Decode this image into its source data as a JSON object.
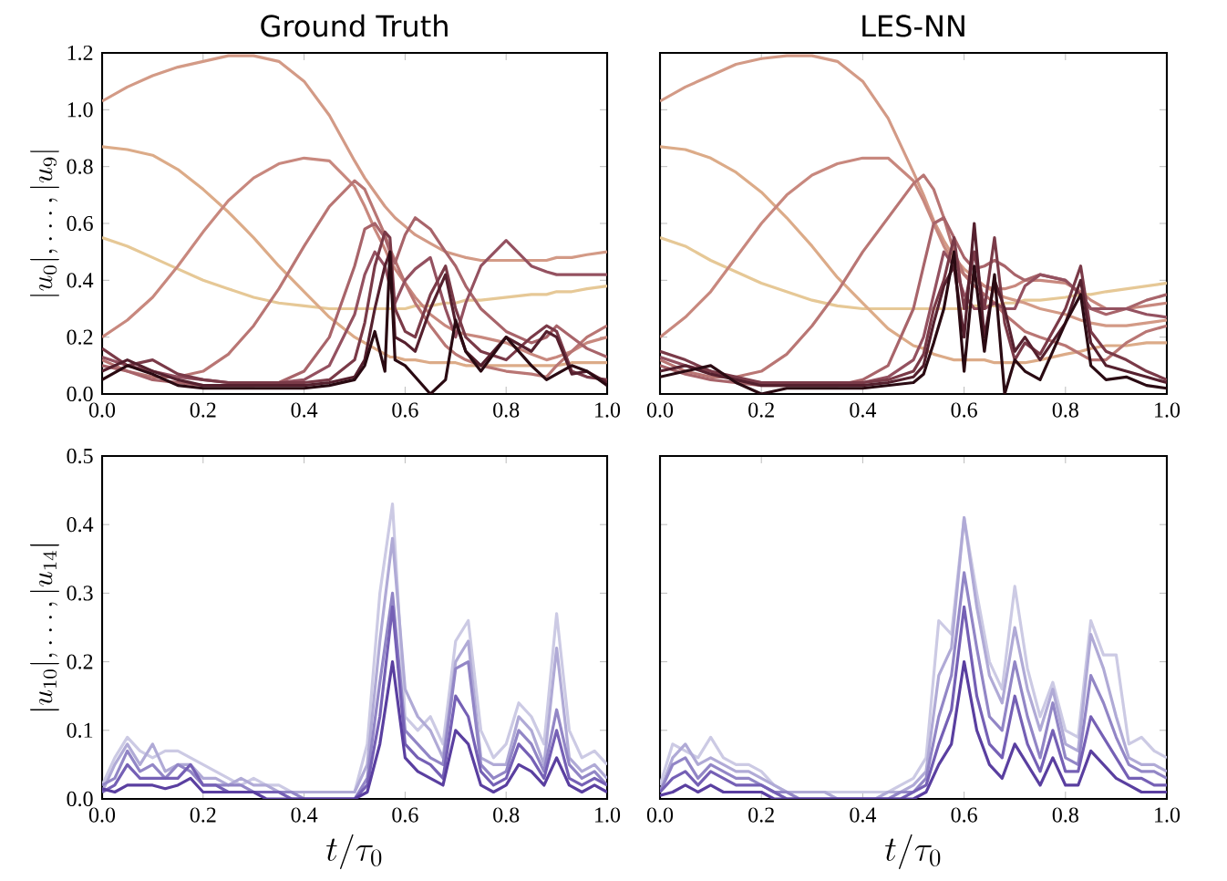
{
  "chart_data": [
    {
      "type": "line",
      "title": "Ground Truth",
      "ylabel": "|u_0|, \\ldots, |u_9|",
      "x": [
        0,
        0.05,
        0.1,
        0.15,
        0.2,
        0.25,
        0.3,
        0.35,
        0.4,
        0.45,
        0.5,
        0.52,
        0.54,
        0.56,
        0.57,
        0.58,
        0.6,
        0.62,
        0.65,
        0.68,
        0.7,
        0.72,
        0.75,
        0.8,
        0.85,
        0.88,
        0.9,
        0.93,
        0.96,
        1.0
      ],
      "xlim": [
        0,
        1
      ],
      "ylim": [
        0,
        1.2
      ],
      "xticks": [
        {
          "value": 0,
          "label": "0.0"
        },
        {
          "value": 0.2,
          "label": "0.2"
        },
        {
          "value": 0.4,
          "label": "0.4"
        },
        {
          "value": 0.6,
          "label": "0.6"
        },
        {
          "value": 0.8,
          "label": "0.8"
        },
        {
          "value": 1,
          "label": "1.0"
        }
      ],
      "yticks": [
        {
          "value": 0,
          "label": "0.0"
        },
        {
          "value": 0.2,
          "label": "0.2"
        },
        {
          "value": 0.4,
          "label": "0.4"
        },
        {
          "value": 0.6,
          "label": "0.6"
        },
        {
          "value": 0.8,
          "label": "0.8"
        },
        {
          "value": 1,
          "label": "1.0"
        },
        {
          "value": 1.2,
          "label": "1.2"
        }
      ],
      "series": [
        {
          "color": "#e6c896",
          "values": [
            0.55,
            0.52,
            0.48,
            0.44,
            0.4,
            0.37,
            0.34,
            0.32,
            0.31,
            0.3,
            0.3,
            0.3,
            0.3,
            0.3,
            0.3,
            0.3,
            0.3,
            0.31,
            0.31,
            0.32,
            0.32,
            0.33,
            0.33,
            0.34,
            0.35,
            0.35,
            0.36,
            0.36,
            0.37,
            0.38
          ]
        },
        {
          "color": "#dcab88",
          "values": [
            0.87,
            0.86,
            0.84,
            0.79,
            0.72,
            0.64,
            0.55,
            0.45,
            0.36,
            0.27,
            0.2,
            0.18,
            0.16,
            0.14,
            0.13,
            0.13,
            0.12,
            0.12,
            0.11,
            0.11,
            0.11,
            0.1,
            0.1,
            0.1,
            0.1,
            0.1,
            0.1,
            0.11,
            0.11,
            0.11
          ]
        },
        {
          "color": "#d39a86",
          "values": [
            1.03,
            1.08,
            1.12,
            1.15,
            1.17,
            1.19,
            1.19,
            1.17,
            1.1,
            0.98,
            0.82,
            0.76,
            0.71,
            0.66,
            0.64,
            0.62,
            0.59,
            0.56,
            0.53,
            0.5,
            0.49,
            0.48,
            0.47,
            0.47,
            0.47,
            0.47,
            0.48,
            0.48,
            0.49,
            0.5
          ]
        },
        {
          "color": "#c8887e",
          "values": [
            0.2,
            0.26,
            0.34,
            0.45,
            0.57,
            0.68,
            0.76,
            0.81,
            0.83,
            0.82,
            0.73,
            0.66,
            0.58,
            0.51,
            0.47,
            0.44,
            0.39,
            0.34,
            0.28,
            0.24,
            0.22,
            0.21,
            0.2,
            0.18,
            0.14,
            0.12,
            0.13,
            0.15,
            0.18,
            0.2
          ]
        },
        {
          "color": "#b97674",
          "values": [
            0.12,
            0.08,
            0.06,
            0.06,
            0.08,
            0.14,
            0.24,
            0.37,
            0.52,
            0.66,
            0.75,
            0.72,
            0.64,
            0.56,
            0.51,
            0.47,
            0.39,
            0.32,
            0.24,
            0.17,
            0.14,
            0.12,
            0.1,
            0.08,
            0.07,
            0.06,
            0.1,
            0.15,
            0.2,
            0.24
          ]
        },
        {
          "color": "#a8646a",
          "values": [
            0.1,
            0.08,
            0.05,
            0.04,
            0.03,
            0.03,
            0.03,
            0.04,
            0.08,
            0.2,
            0.45,
            0.58,
            0.6,
            0.55,
            0.5,
            0.46,
            0.56,
            0.62,
            0.58,
            0.5,
            0.45,
            0.38,
            0.3,
            0.22,
            0.18,
            0.2,
            0.24,
            0.2,
            0.16,
            0.13
          ]
        },
        {
          "color": "#945160",
          "values": [
            0.13,
            0.1,
            0.08,
            0.06,
            0.05,
            0.04,
            0.04,
            0.04,
            0.05,
            0.1,
            0.28,
            0.42,
            0.5,
            0.45,
            0.38,
            0.32,
            0.4,
            0.44,
            0.48,
            0.3,
            0.2,
            0.32,
            0.45,
            0.54,
            0.45,
            0.43,
            0.42,
            0.42,
            0.42,
            0.42
          ]
        },
        {
          "color": "#7a3a48",
          "values": [
            0.16,
            0.1,
            0.12,
            0.07,
            0.05,
            0.04,
            0.04,
            0.04,
            0.04,
            0.05,
            0.12,
            0.25,
            0.45,
            0.57,
            0.55,
            0.3,
            0.22,
            0.2,
            0.35,
            0.45,
            0.3,
            0.2,
            0.15,
            0.12,
            0.2,
            0.24,
            0.22,
            0.08,
            0.06,
            0.05
          ]
        },
        {
          "color": "#55202e",
          "values": [
            0.08,
            0.12,
            0.08,
            0.05,
            0.03,
            0.03,
            0.03,
            0.03,
            0.03,
            0.04,
            0.06,
            0.12,
            0.3,
            0.45,
            0.5,
            0.2,
            0.18,
            0.15,
            0.3,
            0.42,
            0.25,
            0.15,
            0.1,
            0.2,
            0.15,
            0.22,
            0.2,
            0.07,
            0.08,
            0.04
          ]
        },
        {
          "color": "#2a0a12",
          "values": [
            0.05,
            0.1,
            0.07,
            0.03,
            0.02,
            0.02,
            0.02,
            0.02,
            0.02,
            0.03,
            0.05,
            0.1,
            0.22,
            0.08,
            0.5,
            0.12,
            0.1,
            0.06,
            0.0,
            0.05,
            0.26,
            0.15,
            0.08,
            0.2,
            0.1,
            0.05,
            0.07,
            0.1,
            0.08,
            0.03
          ]
        }
      ]
    },
    {
      "type": "line",
      "title": "LES-NN",
      "tick_labels": "x",
      "x": [
        0,
        0.05,
        0.1,
        0.15,
        0.2,
        0.25,
        0.3,
        0.35,
        0.4,
        0.45,
        0.5,
        0.52,
        0.54,
        0.56,
        0.58,
        0.6,
        0.62,
        0.64,
        0.66,
        0.68,
        0.7,
        0.72,
        0.75,
        0.8,
        0.83,
        0.85,
        0.88,
        0.92,
        0.96,
        1.0
      ],
      "xlim": [
        0,
        1
      ],
      "ylim": [
        0,
        1.2
      ],
      "xticks": [
        {
          "value": 0,
          "label": "0.0"
        },
        {
          "value": 0.2,
          "label": "0.2"
        },
        {
          "value": 0.4,
          "label": "0.4"
        },
        {
          "value": 0.6,
          "label": "0.6"
        },
        {
          "value": 0.8,
          "label": "0.8"
        },
        {
          "value": 1,
          "label": "1.0"
        }
      ],
      "yticks": [
        {
          "value": 0,
          "label": null
        },
        {
          "value": 0.2,
          "label": null
        },
        {
          "value": 0.4,
          "label": null
        },
        {
          "value": 0.6,
          "label": null
        },
        {
          "value": 0.8,
          "label": null
        },
        {
          "value": 1,
          "label": null
        },
        {
          "value": 1.2,
          "label": null
        }
      ],
      "series": [
        {
          "color": "#e6c896",
          "values": [
            0.55,
            0.52,
            0.47,
            0.43,
            0.39,
            0.36,
            0.33,
            0.31,
            0.3,
            0.3,
            0.3,
            0.3,
            0.3,
            0.3,
            0.3,
            0.3,
            0.31,
            0.31,
            0.31,
            0.32,
            0.32,
            0.33,
            0.33,
            0.34,
            0.35,
            0.35,
            0.36,
            0.37,
            0.38,
            0.39
          ]
        },
        {
          "color": "#dcab88",
          "values": [
            0.87,
            0.86,
            0.83,
            0.78,
            0.71,
            0.62,
            0.52,
            0.41,
            0.32,
            0.23,
            0.17,
            0.16,
            0.14,
            0.13,
            0.12,
            0.12,
            0.12,
            0.12,
            0.11,
            0.11,
            0.11,
            0.11,
            0.12,
            0.14,
            0.15,
            0.16,
            0.17,
            0.17,
            0.18,
            0.18
          ]
        },
        {
          "color": "#d39a86",
          "values": [
            1.03,
            1.08,
            1.12,
            1.16,
            1.18,
            1.19,
            1.19,
            1.17,
            1.1,
            0.97,
            0.78,
            0.7,
            0.61,
            0.54,
            0.48,
            0.44,
            0.41,
            0.38,
            0.36,
            0.34,
            0.33,
            0.32,
            0.3,
            0.28,
            0.26,
            0.25,
            0.24,
            0.24,
            0.25,
            0.26
          ]
        },
        {
          "color": "#c8887e",
          "values": [
            0.2,
            0.27,
            0.36,
            0.48,
            0.6,
            0.7,
            0.77,
            0.81,
            0.83,
            0.83,
            0.75,
            0.68,
            0.6,
            0.52,
            0.46,
            0.42,
            0.4,
            0.38,
            0.37,
            0.37,
            0.38,
            0.4,
            0.4,
            0.39,
            0.36,
            0.33,
            0.3,
            0.3,
            0.31,
            0.32
          ]
        },
        {
          "color": "#b97674",
          "values": [
            0.12,
            0.08,
            0.06,
            0.06,
            0.08,
            0.14,
            0.24,
            0.36,
            0.5,
            0.62,
            0.74,
            0.77,
            0.72,
            0.62,
            0.5,
            0.42,
            0.38,
            0.35,
            0.32,
            0.28,
            0.25,
            0.22,
            0.2,
            0.17,
            0.14,
            0.12,
            0.12,
            0.18,
            0.22,
            0.24
          ]
        },
        {
          "color": "#a8646a",
          "values": [
            0.1,
            0.07,
            0.05,
            0.04,
            0.03,
            0.03,
            0.03,
            0.03,
            0.05,
            0.1,
            0.3,
            0.45,
            0.6,
            0.62,
            0.55,
            0.48,
            0.44,
            0.45,
            0.47,
            0.45,
            0.42,
            0.4,
            0.42,
            0.4,
            0.35,
            0.3,
            0.28,
            0.3,
            0.33,
            0.35
          ]
        },
        {
          "color": "#945160",
          "values": [
            0.13,
            0.1,
            0.08,
            0.05,
            0.04,
            0.04,
            0.04,
            0.04,
            0.04,
            0.06,
            0.12,
            0.2,
            0.35,
            0.5,
            0.45,
            0.35,
            0.3,
            0.3,
            0.32,
            0.3,
            0.3,
            0.38,
            0.42,
            0.4,
            0.35,
            0.3,
            0.3,
            0.3,
            0.28,
            0.27
          ]
        },
        {
          "color": "#7a3a48",
          "values": [
            0.15,
            0.12,
            0.08,
            0.06,
            0.04,
            0.04,
            0.04,
            0.04,
            0.04,
            0.05,
            0.08,
            0.14,
            0.3,
            0.4,
            0.55,
            0.3,
            0.5,
            0.3,
            0.55,
            0.25,
            0.12,
            0.18,
            0.14,
            0.3,
            0.45,
            0.22,
            0.15,
            0.12,
            0.08,
            0.05
          ]
        },
        {
          "color": "#55202e",
          "values": [
            0.08,
            0.1,
            0.07,
            0.05,
            0.03,
            0.03,
            0.03,
            0.03,
            0.03,
            0.04,
            0.06,
            0.1,
            0.25,
            0.38,
            0.45,
            0.2,
            0.6,
            0.2,
            0.4,
            0.3,
            0.15,
            0.2,
            0.12,
            0.25,
            0.4,
            0.18,
            0.1,
            0.08,
            0.06,
            0.04
          ]
        },
        {
          "color": "#2a0a12",
          "values": [
            0.06,
            0.08,
            0.1,
            0.04,
            0.0,
            0.02,
            0.02,
            0.02,
            0.02,
            0.03,
            0.04,
            0.07,
            0.18,
            0.3,
            0.5,
            0.08,
            0.45,
            0.15,
            0.42,
            0.0,
            0.12,
            0.08,
            0.05,
            0.25,
            0.35,
            0.1,
            0.05,
            0.06,
            0.03,
            0.02
          ]
        }
      ]
    },
    {
      "type": "line",
      "xlabel": "t/\\tau_0",
      "ylabel": "|u_{10}|, \\ldots, |u_{14}|",
      "x": [
        0,
        0.025,
        0.05,
        0.075,
        0.1,
        0.125,
        0.15,
        0.175,
        0.2,
        0.225,
        0.25,
        0.275,
        0.3,
        0.325,
        0.35,
        0.375,
        0.4,
        0.425,
        0.45,
        0.475,
        0.5,
        0.525,
        0.55,
        0.575,
        0.6,
        0.625,
        0.65,
        0.675,
        0.7,
        0.725,
        0.75,
        0.775,
        0.8,
        0.825,
        0.85,
        0.875,
        0.9,
        0.925,
        0.95,
        0.975,
        1.0
      ],
      "xlim": [
        0,
        1
      ],
      "ylim": [
        0,
        0.5
      ],
      "xticks": [
        {
          "value": 0,
          "label": "0.0"
        },
        {
          "value": 0.2,
          "label": "0.2"
        },
        {
          "value": 0.4,
          "label": "0.4"
        },
        {
          "value": 0.6,
          "label": "0.6"
        },
        {
          "value": 0.8,
          "label": "0.8"
        },
        {
          "value": 1,
          "label": "1.0"
        }
      ],
      "yticks": [
        {
          "value": 0,
          "label": "0.0"
        },
        {
          "value": 0.1,
          "label": "0.1"
        },
        {
          "value": 0.2,
          "label": "0.2"
        },
        {
          "value": 0.3,
          "label": "0.3"
        },
        {
          "value": 0.4,
          "label": "0.4"
        },
        {
          "value": 0.5,
          "label": "0.5"
        }
      ],
      "series": [
        {
          "color": "#cccae4",
          "values": [
            0.02,
            0.06,
            0.09,
            0.07,
            0.06,
            0.07,
            0.07,
            0.06,
            0.05,
            0.04,
            0.03,
            0.02,
            0.03,
            0.02,
            0.02,
            0.01,
            0.01,
            0.01,
            0.01,
            0.01,
            0.01,
            0.08,
            0.3,
            0.43,
            0.12,
            0.1,
            0.12,
            0.08,
            0.23,
            0.26,
            0.1,
            0.06,
            0.08,
            0.14,
            0.12,
            0.08,
            0.27,
            0.1,
            0.06,
            0.07,
            0.05
          ]
        },
        {
          "color": "#b0aad6",
          "values": [
            0.01,
            0.05,
            0.08,
            0.05,
            0.08,
            0.04,
            0.05,
            0.05,
            0.03,
            0.03,
            0.02,
            0.03,
            0.02,
            0.02,
            0.01,
            0.01,
            0.01,
            0.01,
            0.01,
            0.01,
            0.01,
            0.05,
            0.23,
            0.38,
            0.16,
            0.12,
            0.1,
            0.06,
            0.2,
            0.23,
            0.06,
            0.05,
            0.05,
            0.12,
            0.1,
            0.05,
            0.22,
            0.06,
            0.04,
            0.05,
            0.03
          ]
        },
        {
          "color": "#9286c6",
          "values": [
            0.02,
            0.03,
            0.07,
            0.04,
            0.05,
            0.03,
            0.05,
            0.04,
            0.02,
            0.02,
            0.02,
            0.02,
            0.01,
            0.01,
            0.01,
            0.01,
            0.0,
            0.0,
            0.0,
            0.0,
            0.0,
            0.03,
            0.17,
            0.3,
            0.1,
            0.08,
            0.06,
            0.05,
            0.19,
            0.2,
            0.05,
            0.03,
            0.04,
            0.1,
            0.08,
            0.04,
            0.13,
            0.05,
            0.03,
            0.04,
            0.02
          ]
        },
        {
          "color": "#7560b5",
          "values": [
            0.01,
            0.02,
            0.05,
            0.03,
            0.03,
            0.03,
            0.03,
            0.05,
            0.02,
            0.02,
            0.01,
            0.01,
            0.01,
            0.01,
            0.01,
            0.0,
            0.0,
            0.0,
            0.0,
            0.0,
            0.0,
            0.02,
            0.12,
            0.28,
            0.08,
            0.06,
            0.05,
            0.03,
            0.15,
            0.12,
            0.04,
            0.02,
            0.03,
            0.08,
            0.06,
            0.03,
            0.1,
            0.03,
            0.02,
            0.03,
            0.02
          ]
        },
        {
          "color": "#5a3fa0",
          "values": [
            0.015,
            0.01,
            0.02,
            0.02,
            0.02,
            0.015,
            0.02,
            0.03,
            0.01,
            0.01,
            0.01,
            0.01,
            0.01,
            0.0,
            0.0,
            0.0,
            0.0,
            0.0,
            0.0,
            0.0,
            0.0,
            0.01,
            0.08,
            0.2,
            0.06,
            0.04,
            0.03,
            0.02,
            0.1,
            0.08,
            0.02,
            0.01,
            0.02,
            0.05,
            0.04,
            0.02,
            0.06,
            0.02,
            0.01,
            0.02,
            0.01
          ]
        }
      ]
    },
    {
      "type": "line",
      "xlabel": "t/\\tau_0",
      "tick_labels": "x",
      "x": [
        0,
        0.025,
        0.05,
        0.075,
        0.1,
        0.125,
        0.15,
        0.175,
        0.2,
        0.225,
        0.25,
        0.275,
        0.3,
        0.325,
        0.35,
        0.375,
        0.4,
        0.425,
        0.45,
        0.475,
        0.5,
        0.525,
        0.55,
        0.575,
        0.6,
        0.625,
        0.65,
        0.675,
        0.7,
        0.725,
        0.75,
        0.775,
        0.8,
        0.825,
        0.85,
        0.875,
        0.9,
        0.925,
        0.95,
        0.975,
        1.0
      ],
      "xlim": [
        0,
        1
      ],
      "ylim": [
        0,
        0.5
      ],
      "xticks": [
        {
          "value": 0,
          "label": "0.0"
        },
        {
          "value": 0.2,
          "label": "0.2"
        },
        {
          "value": 0.4,
          "label": "0.4"
        },
        {
          "value": 0.6,
          "label": "0.6"
        },
        {
          "value": 0.8,
          "label": "0.8"
        },
        {
          "value": 1,
          "label": "1.0"
        }
      ],
      "yticks": [
        {
          "value": 0,
          "label": null
        },
        {
          "value": 0.1,
          "label": null
        },
        {
          "value": 0.2,
          "label": null
        },
        {
          "value": 0.3,
          "label": null
        },
        {
          "value": 0.4,
          "label": null
        },
        {
          "value": 0.5,
          "label": null
        }
      ],
      "series": [
        {
          "color": "#cccae4",
          "values": [
            0.02,
            0.08,
            0.07,
            0.06,
            0.09,
            0.06,
            0.05,
            0.05,
            0.04,
            0.02,
            0.01,
            0.01,
            0.01,
            0.01,
            0.01,
            0.01,
            0.01,
            0.01,
            0.01,
            0.02,
            0.03,
            0.06,
            0.26,
            0.24,
            0.41,
            0.3,
            0.2,
            0.16,
            0.31,
            0.19,
            0.12,
            0.17,
            0.1,
            0.09,
            0.26,
            0.21,
            0.21,
            0.08,
            0.09,
            0.07,
            0.06
          ]
        },
        {
          "color": "#b0aad6",
          "values": [
            0.01,
            0.06,
            0.08,
            0.05,
            0.06,
            0.05,
            0.04,
            0.04,
            0.03,
            0.02,
            0.01,
            0.01,
            0.01,
            0.01,
            0.0,
            0.0,
            0.0,
            0.0,
            0.01,
            0.01,
            0.02,
            0.04,
            0.18,
            0.22,
            0.41,
            0.28,
            0.18,
            0.14,
            0.25,
            0.16,
            0.1,
            0.16,
            0.08,
            0.07,
            0.24,
            0.19,
            0.12,
            0.06,
            0.05,
            0.05,
            0.04
          ]
        },
        {
          "color": "#9286c6",
          "values": [
            0.01,
            0.05,
            0.06,
            0.03,
            0.05,
            0.04,
            0.03,
            0.03,
            0.02,
            0.01,
            0.01,
            0.0,
            0.0,
            0.0,
            0.0,
            0.0,
            0.0,
            0.0,
            0.0,
            0.01,
            0.01,
            0.03,
            0.12,
            0.18,
            0.33,
            0.22,
            0.12,
            0.1,
            0.2,
            0.12,
            0.06,
            0.14,
            0.06,
            0.05,
            0.18,
            0.14,
            0.09,
            0.05,
            0.04,
            0.04,
            0.03
          ]
        },
        {
          "color": "#7560b5",
          "values": [
            0.01,
            0.03,
            0.04,
            0.02,
            0.04,
            0.03,
            0.02,
            0.02,
            0.02,
            0.01,
            0.0,
            0.0,
            0.0,
            0.0,
            0.0,
            0.0,
            0.0,
            0.0,
            0.0,
            0.0,
            0.01,
            0.02,
            0.08,
            0.13,
            0.28,
            0.15,
            0.08,
            0.06,
            0.15,
            0.08,
            0.04,
            0.1,
            0.04,
            0.04,
            0.12,
            0.09,
            0.06,
            0.03,
            0.03,
            0.02,
            0.02
          ]
        },
        {
          "color": "#5a3fa0",
          "values": [
            0.005,
            0.01,
            0.02,
            0.01,
            0.02,
            0.01,
            0.01,
            0.01,
            0.01,
            0.0,
            0.0,
            0.0,
            0.0,
            0.0,
            0.0,
            0.0,
            0.0,
            0.0,
            0.0,
            0.0,
            0.0,
            0.01,
            0.05,
            0.08,
            0.2,
            0.1,
            0.05,
            0.03,
            0.08,
            0.05,
            0.02,
            0.06,
            0.02,
            0.02,
            0.07,
            0.05,
            0.03,
            0.02,
            0.01,
            0.01,
            0.01
          ]
        }
      ]
    }
  ]
}
